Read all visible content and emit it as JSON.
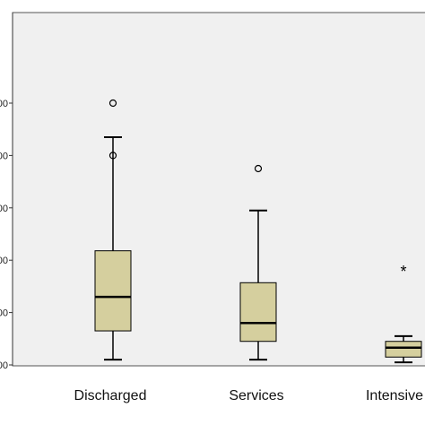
{
  "chart_data": {
    "type": "boxplot",
    "title": "",
    "xlabel": "",
    "ylabel": "",
    "ylim": [
      0,
      6
    ],
    "yticks": [
      0,
      1,
      2,
      3,
      4,
      5
    ],
    "ytick_labels": [
      "00",
      "00",
      "00",
      "00",
      "00",
      "00"
    ],
    "grid": false,
    "background_color": "#f0f0f0",
    "box_color": "#d5cf9e",
    "categories": [
      "Discharged",
      "Services",
      "Intensive C"
    ],
    "boxes": [
      {
        "category": "Discharged",
        "whisker_low": 0.1,
        "q1": 0.65,
        "median": 1.3,
        "q3": 2.18,
        "whisker_high": 4.35,
        "outliers": [
          {
            "value": 5.0,
            "marker": "circle"
          },
          {
            "value": 4.0,
            "marker": "circle"
          }
        ]
      },
      {
        "category": "Services",
        "whisker_low": 0.1,
        "q1": 0.45,
        "median": 0.8,
        "q3": 1.57,
        "whisker_high": 2.95,
        "outliers": [
          {
            "value": 3.75,
            "marker": "circle"
          }
        ]
      },
      {
        "category": "Intensive C",
        "whisker_low": 0.05,
        "q1": 0.15,
        "median": 0.33,
        "q3": 0.45,
        "whisker_high": 0.55,
        "outliers": [
          {
            "value": 1.8,
            "marker": "star",
            "symbol": "*"
          }
        ]
      }
    ]
  }
}
